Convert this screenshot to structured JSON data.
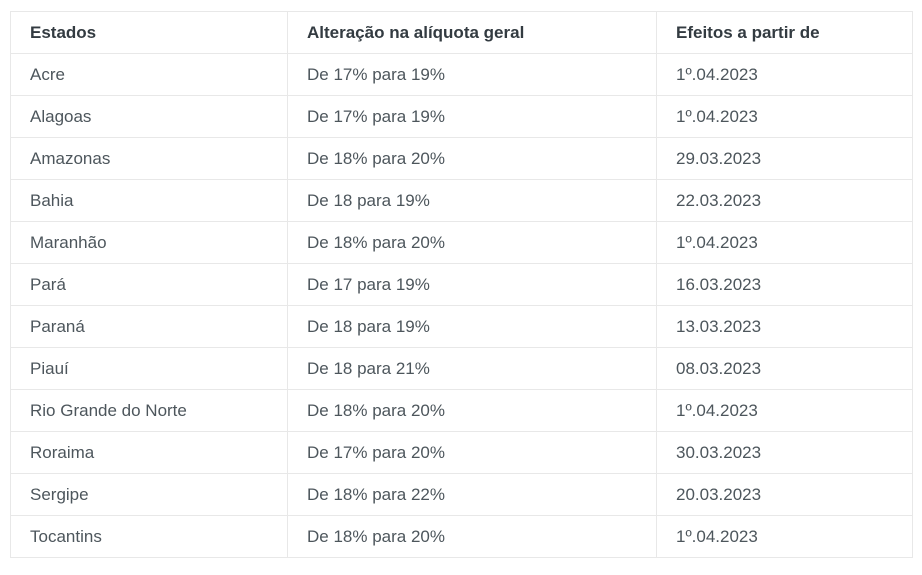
{
  "chart_data": {
    "type": "table",
    "columns": [
      "Estados",
      "Alteração na alíquota geral",
      "Efeitos a partir de"
    ],
    "rows": [
      [
        "Acre",
        "De 17% para 19%",
        "1º.04.2023"
      ],
      [
        "Alagoas",
        "De 17% para 19%",
        "1º.04.2023"
      ],
      [
        "Amazonas",
        "De 18% para 20%",
        "29.03.2023"
      ],
      [
        "Bahia",
        "De 18 para 19%",
        "22.03.2023"
      ],
      [
        "Maranhão",
        "De 18% para 20%",
        "1º.04.2023"
      ],
      [
        "Pará",
        "De 17 para 19%",
        "16.03.2023"
      ],
      [
        "Paraná",
        "De 18 para 19%",
        "13.03.2023"
      ],
      [
        "Piauí",
        "De 18 para 21%",
        "08.03.2023"
      ],
      [
        "Rio Grande do Norte",
        "De 18% para 20%",
        "1º.04.2023"
      ],
      [
        "Roraima",
        "De 17% para 20%",
        "30.03.2023"
      ],
      [
        "Sergipe",
        "De 18% para 22%",
        "20.03.2023"
      ],
      [
        "Tocantins",
        "De 18% para 20%",
        "1º.04.2023"
      ]
    ]
  },
  "colors": {
    "header_text": "#333b41",
    "body_text": "#4d565c",
    "border": "#e8e8e8",
    "background": "#ffffff"
  }
}
